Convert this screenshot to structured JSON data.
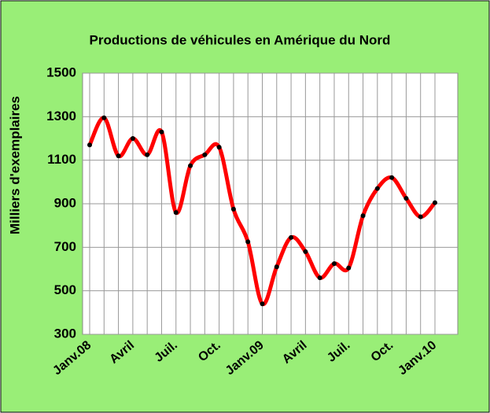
{
  "chart_data": {
    "type": "line",
    "title": "Productions de véhicules en Amérique du Nord",
    "y_label": "Milliers d'exemplaires",
    "categories": [
      "Janv.08",
      null,
      null,
      "Avril",
      null,
      null,
      "Juil.",
      null,
      null,
      "Oct.",
      null,
      null,
      "Janv.09",
      null,
      null,
      "Avril",
      null,
      null,
      "Juil.",
      null,
      null,
      "Oct.",
      null,
      null,
      "Janv.10"
    ],
    "series": [
      {
        "color": "#ff0000",
        "marker_color": "#000000",
        "values": [
          1170,
          1295,
          1120,
          1200,
          1125,
          1230,
          860,
          1075,
          1125,
          1160,
          875,
          725,
          440,
          610,
          745,
          680,
          560,
          625,
          605,
          845,
          970,
          1020,
          925,
          840,
          905
        ]
      }
    ],
    "ylim": [
      300,
      1500
    ],
    "yticks": [
      300,
      500,
      700,
      900,
      1100,
      1300,
      1500
    ],
    "grid": true
  }
}
